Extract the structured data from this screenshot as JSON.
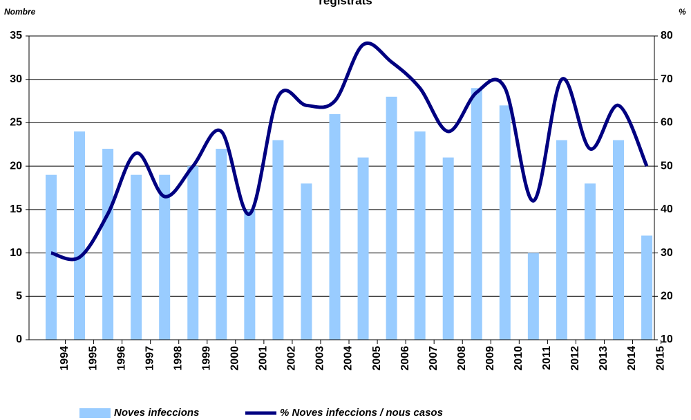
{
  "chart_data": {
    "type": "bar_line",
    "title": "registrats",
    "y_label": "Nombre",
    "y2_label": "%",
    "categories": [
      "1994",
      "1995",
      "1996",
      "1997",
      "1998",
      "1999",
      "2000",
      "2001",
      "2002",
      "2003",
      "2004",
      "2005",
      "2006",
      "2007",
      "2008",
      "2009",
      "2010",
      "2011",
      "2012",
      "2013",
      "2014",
      "2015"
    ],
    "series": [
      {
        "name": "Noves infeccions",
        "type": "bar",
        "color": "#99ccff",
        "values": [
          19,
          24,
          22,
          19,
          19,
          20,
          22,
          15,
          23,
          18,
          26,
          21,
          28,
          24,
          21,
          29,
          27,
          10,
          23,
          18,
          23,
          12
        ]
      },
      {
        "name": "% Noves infeccions / nous casos",
        "type": "line",
        "axis": "y2",
        "color": "#000080",
        "values": [
          30,
          29,
          39,
          53,
          43,
          50,
          58,
          39,
          66,
          64,
          65,
          78,
          74,
          68,
          58,
          67,
          68,
          42,
          70,
          54,
          64,
          50
        ]
      }
    ],
    "ylim": [
      0,
      35
    ],
    "yticks": [
      0,
      5,
      10,
      15,
      20,
      25,
      30,
      35
    ],
    "y2lim": [
      10,
      80
    ],
    "y2ticks": [
      10,
      20,
      30,
      40,
      50,
      60,
      70,
      80
    ],
    "grid": true
  }
}
